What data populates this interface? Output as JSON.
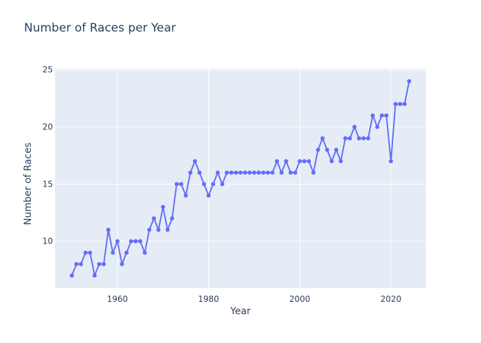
{
  "colors": {
    "plot_bg": "#e5ecf6",
    "grid": "#ffffff",
    "series": "#636efa",
    "text": "#2a3f5f"
  },
  "chart_data": {
    "type": "line",
    "mode": "lines+markers",
    "title": "Number of Races per Year",
    "xlabel": "Year",
    "ylabel": "Number of Races",
    "xlim": [
      1946.3,
      2027.7
    ],
    "ylim": [
      5.9,
      25.1
    ],
    "xticks": [
      1960,
      1980,
      2000,
      2020
    ],
    "yticks": [
      10,
      15,
      20,
      25
    ],
    "grid": true,
    "legend": false,
    "x": [
      1950,
      1951,
      1952,
      1953,
      1954,
      1955,
      1956,
      1957,
      1958,
      1959,
      1960,
      1961,
      1962,
      1963,
      1964,
      1965,
      1966,
      1967,
      1968,
      1969,
      1970,
      1971,
      1972,
      1973,
      1974,
      1975,
      1976,
      1977,
      1978,
      1979,
      1980,
      1981,
      1982,
      1983,
      1984,
      1985,
      1986,
      1987,
      1988,
      1989,
      1990,
      1991,
      1992,
      1993,
      1994,
      1995,
      1996,
      1997,
      1998,
      1999,
      2000,
      2001,
      2002,
      2003,
      2004,
      2005,
      2006,
      2007,
      2008,
      2009,
      2010,
      2011,
      2012,
      2013,
      2014,
      2015,
      2016,
      2017,
      2018,
      2019,
      2020,
      2021,
      2022,
      2023,
      2024
    ],
    "y": [
      7,
      8,
      8,
      9,
      9,
      7,
      8,
      8,
      11,
      9,
      10,
      8,
      9,
      10,
      10,
      10,
      9,
      11,
      12,
      11,
      13,
      11,
      12,
      15,
      15,
      14,
      16,
      17,
      16,
      15,
      14,
      15,
      16,
      15,
      16,
      16,
      16,
      16,
      16,
      16,
      16,
      16,
      16,
      16,
      16,
      17,
      16,
      17,
      16,
      16,
      17,
      17,
      17,
      16,
      18,
      19,
      18,
      17,
      18,
      17,
      19,
      19,
      20,
      19,
      19,
      19,
      21,
      20,
      21,
      21,
      17,
      22,
      22,
      22,
      24
    ]
  }
}
